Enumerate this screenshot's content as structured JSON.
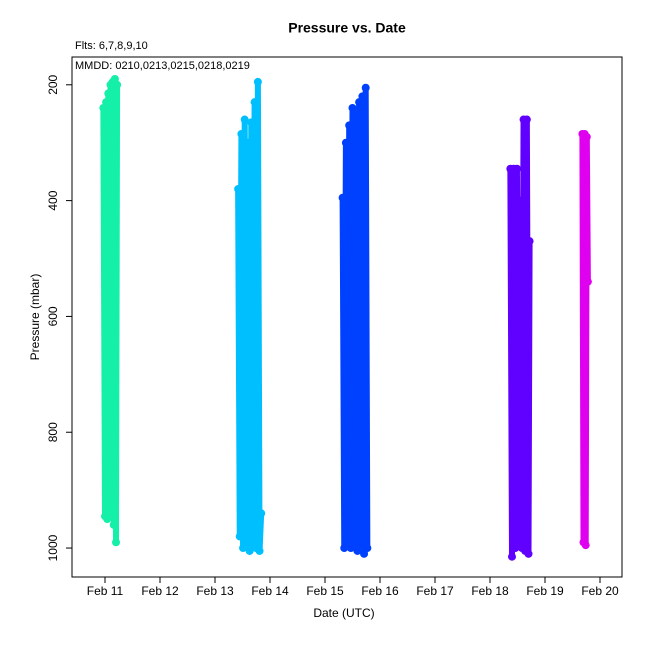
{
  "chart_data": {
    "type": "line",
    "title": "Pressure  vs. Date",
    "annotations": [
      "Flts: 6,7,8,9,10",
      "MMDD: 0210,0213,0215,0218,0219"
    ],
    "xlabel": "Date (UTC)",
    "ylabel": "Pressure (mbar)",
    "xlim": [
      10.4,
      20.4
    ],
    "xticks": [
      {
        "value": 11,
        "label": "Feb 11"
      },
      {
        "value": 12,
        "label": "Feb 12"
      },
      {
        "value": 13,
        "label": "Feb 13"
      },
      {
        "value": 14,
        "label": "Feb 14"
      },
      {
        "value": 15,
        "label": "Feb 15"
      },
      {
        "value": 16,
        "label": "Feb 16"
      },
      {
        "value": 17,
        "label": "Feb 17"
      },
      {
        "value": 18,
        "label": "Feb 18"
      },
      {
        "value": 19,
        "label": "Feb 19"
      },
      {
        "value": 20,
        "label": "Feb 20"
      }
    ],
    "ylim": [
      1050,
      152
    ],
    "yticks": [
      200,
      400,
      600,
      800,
      1000
    ],
    "series": [
      {
        "color": "#14f0a8",
        "x": [
          10.97,
          11.0,
          11.02,
          11.04,
          11.06,
          11.08,
          11.1,
          11.12,
          11.14,
          11.16,
          11.18,
          11.2,
          11.22
        ],
        "values": [
          240,
          945,
          230,
          950,
          215,
          940,
          200,
          930,
          195,
          960,
          190,
          990,
          200
        ]
      },
      {
        "color": "#00bfff",
        "x": [
          13.42,
          13.45,
          13.48,
          13.51,
          13.54,
          13.57,
          13.6,
          13.63,
          13.66,
          13.69,
          13.72,
          13.75,
          13.78,
          13.81,
          13.84
        ],
        "values": [
          380,
          980,
          285,
          1000,
          260,
          990,
          300,
          1005,
          265,
          995,
          230,
          1000,
          195,
          1005,
          940
        ]
      },
      {
        "color": "#0040ff",
        "x": [
          15.32,
          15.35,
          15.38,
          15.41,
          15.44,
          15.47,
          15.5,
          15.53,
          15.56,
          15.59,
          15.62,
          15.65,
          15.68,
          15.71,
          15.74,
          15.77
        ],
        "values": [
          395,
          1000,
          300,
          995,
          270,
          1000,
          240,
          990,
          250,
          1005,
          230,
          995,
          220,
          1010,
          205,
          1000
        ]
      },
      {
        "color": "#6000ff",
        "x": [
          18.37,
          18.4,
          18.43,
          18.46,
          18.49,
          18.52,
          18.55,
          18.58,
          18.61,
          18.64,
          18.67,
          18.7,
          18.72
        ],
        "values": [
          345,
          1015,
          345,
          1000,
          345,
          990,
          400,
          1000,
          260,
          1005,
          260,
          1010,
          470
        ]
      },
      {
        "color": "#e000f0",
        "x": [
          19.68,
          19.7,
          19.72,
          19.74,
          19.76,
          19.78
        ],
        "values": [
          285,
          990,
          285,
          995,
          290,
          540
        ]
      }
    ]
  }
}
